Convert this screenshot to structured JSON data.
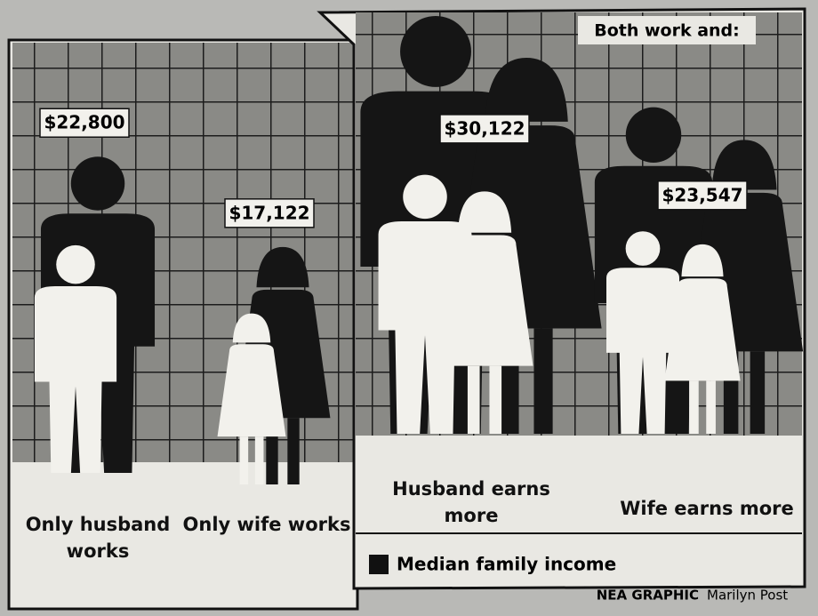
{
  "chart_data": {
    "type": "pictograph",
    "group_title": "Both work and:",
    "legend_label": "Median family income",
    "credit_source": "NEA GRAPHIC",
    "credit_artist": "Marilyn Post",
    "categories": [
      "Only husband works",
      "Only wife works",
      "Husband earns more",
      "Wife earns more"
    ],
    "values": [
      22800,
      17122,
      30122,
      23547
    ],
    "value_labels": [
      "$22,800",
      "$17,122",
      "$30,122",
      "$23,547"
    ],
    "color": "#151515"
  }
}
